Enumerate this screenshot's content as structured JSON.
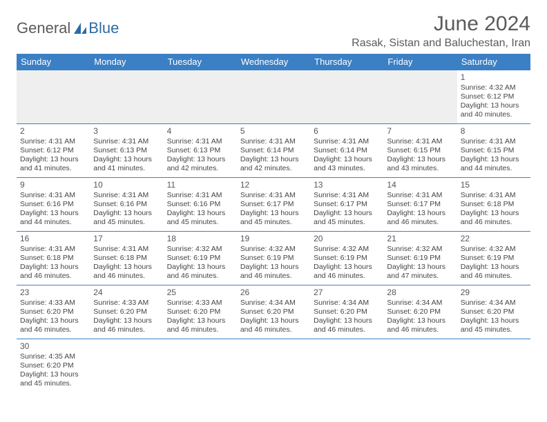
{
  "brand": {
    "word1": "General",
    "word2": "Blue"
  },
  "title": "June 2024",
  "location": "Rasak, Sistan and Baluchestan, Iran",
  "colors": {
    "header_bg": "#3b7fc4",
    "header_text": "#ffffff",
    "cell_border": "#3b7fc4",
    "blank_bg": "#efefef",
    "title_color": "#5a5a5a"
  },
  "weekdays": [
    "Sunday",
    "Monday",
    "Tuesday",
    "Wednesday",
    "Thursday",
    "Friday",
    "Saturday"
  ],
  "leading_blanks": 6,
  "days": [
    {
      "n": 1,
      "sunrise": "4:32 AM",
      "sunset": "6:12 PM",
      "daylight": "13 hours and 40 minutes."
    },
    {
      "n": 2,
      "sunrise": "4:31 AM",
      "sunset": "6:12 PM",
      "daylight": "13 hours and 41 minutes."
    },
    {
      "n": 3,
      "sunrise": "4:31 AM",
      "sunset": "6:13 PM",
      "daylight": "13 hours and 41 minutes."
    },
    {
      "n": 4,
      "sunrise": "4:31 AM",
      "sunset": "6:13 PM",
      "daylight": "13 hours and 42 minutes."
    },
    {
      "n": 5,
      "sunrise": "4:31 AM",
      "sunset": "6:14 PM",
      "daylight": "13 hours and 42 minutes."
    },
    {
      "n": 6,
      "sunrise": "4:31 AM",
      "sunset": "6:14 PM",
      "daylight": "13 hours and 43 minutes."
    },
    {
      "n": 7,
      "sunrise": "4:31 AM",
      "sunset": "6:15 PM",
      "daylight": "13 hours and 43 minutes."
    },
    {
      "n": 8,
      "sunrise": "4:31 AM",
      "sunset": "6:15 PM",
      "daylight": "13 hours and 44 minutes."
    },
    {
      "n": 9,
      "sunrise": "4:31 AM",
      "sunset": "6:16 PM",
      "daylight": "13 hours and 44 minutes."
    },
    {
      "n": 10,
      "sunrise": "4:31 AM",
      "sunset": "6:16 PM",
      "daylight": "13 hours and 45 minutes."
    },
    {
      "n": 11,
      "sunrise": "4:31 AM",
      "sunset": "6:16 PM",
      "daylight": "13 hours and 45 minutes."
    },
    {
      "n": 12,
      "sunrise": "4:31 AM",
      "sunset": "6:17 PM",
      "daylight": "13 hours and 45 minutes."
    },
    {
      "n": 13,
      "sunrise": "4:31 AM",
      "sunset": "6:17 PM",
      "daylight": "13 hours and 45 minutes."
    },
    {
      "n": 14,
      "sunrise": "4:31 AM",
      "sunset": "6:17 PM",
      "daylight": "13 hours and 46 minutes."
    },
    {
      "n": 15,
      "sunrise": "4:31 AM",
      "sunset": "6:18 PM",
      "daylight": "13 hours and 46 minutes."
    },
    {
      "n": 16,
      "sunrise": "4:31 AM",
      "sunset": "6:18 PM",
      "daylight": "13 hours and 46 minutes."
    },
    {
      "n": 17,
      "sunrise": "4:31 AM",
      "sunset": "6:18 PM",
      "daylight": "13 hours and 46 minutes."
    },
    {
      "n": 18,
      "sunrise": "4:32 AM",
      "sunset": "6:19 PM",
      "daylight": "13 hours and 46 minutes."
    },
    {
      "n": 19,
      "sunrise": "4:32 AM",
      "sunset": "6:19 PM",
      "daylight": "13 hours and 46 minutes."
    },
    {
      "n": 20,
      "sunrise": "4:32 AM",
      "sunset": "6:19 PM",
      "daylight": "13 hours and 46 minutes."
    },
    {
      "n": 21,
      "sunrise": "4:32 AM",
      "sunset": "6:19 PM",
      "daylight": "13 hours and 47 minutes."
    },
    {
      "n": 22,
      "sunrise": "4:32 AM",
      "sunset": "6:19 PM",
      "daylight": "13 hours and 46 minutes."
    },
    {
      "n": 23,
      "sunrise": "4:33 AM",
      "sunset": "6:20 PM",
      "daylight": "13 hours and 46 minutes."
    },
    {
      "n": 24,
      "sunrise": "4:33 AM",
      "sunset": "6:20 PM",
      "daylight": "13 hours and 46 minutes."
    },
    {
      "n": 25,
      "sunrise": "4:33 AM",
      "sunset": "6:20 PM",
      "daylight": "13 hours and 46 minutes."
    },
    {
      "n": 26,
      "sunrise": "4:34 AM",
      "sunset": "6:20 PM",
      "daylight": "13 hours and 46 minutes."
    },
    {
      "n": 27,
      "sunrise": "4:34 AM",
      "sunset": "6:20 PM",
      "daylight": "13 hours and 46 minutes."
    },
    {
      "n": 28,
      "sunrise": "4:34 AM",
      "sunset": "6:20 PM",
      "daylight": "13 hours and 46 minutes."
    },
    {
      "n": 29,
      "sunrise": "4:34 AM",
      "sunset": "6:20 PM",
      "daylight": "13 hours and 45 minutes."
    },
    {
      "n": 30,
      "sunrise": "4:35 AM",
      "sunset": "6:20 PM",
      "daylight": "13 hours and 45 minutes."
    }
  ],
  "labels": {
    "sunrise": "Sunrise:",
    "sunset": "Sunset:",
    "daylight": "Daylight:"
  }
}
